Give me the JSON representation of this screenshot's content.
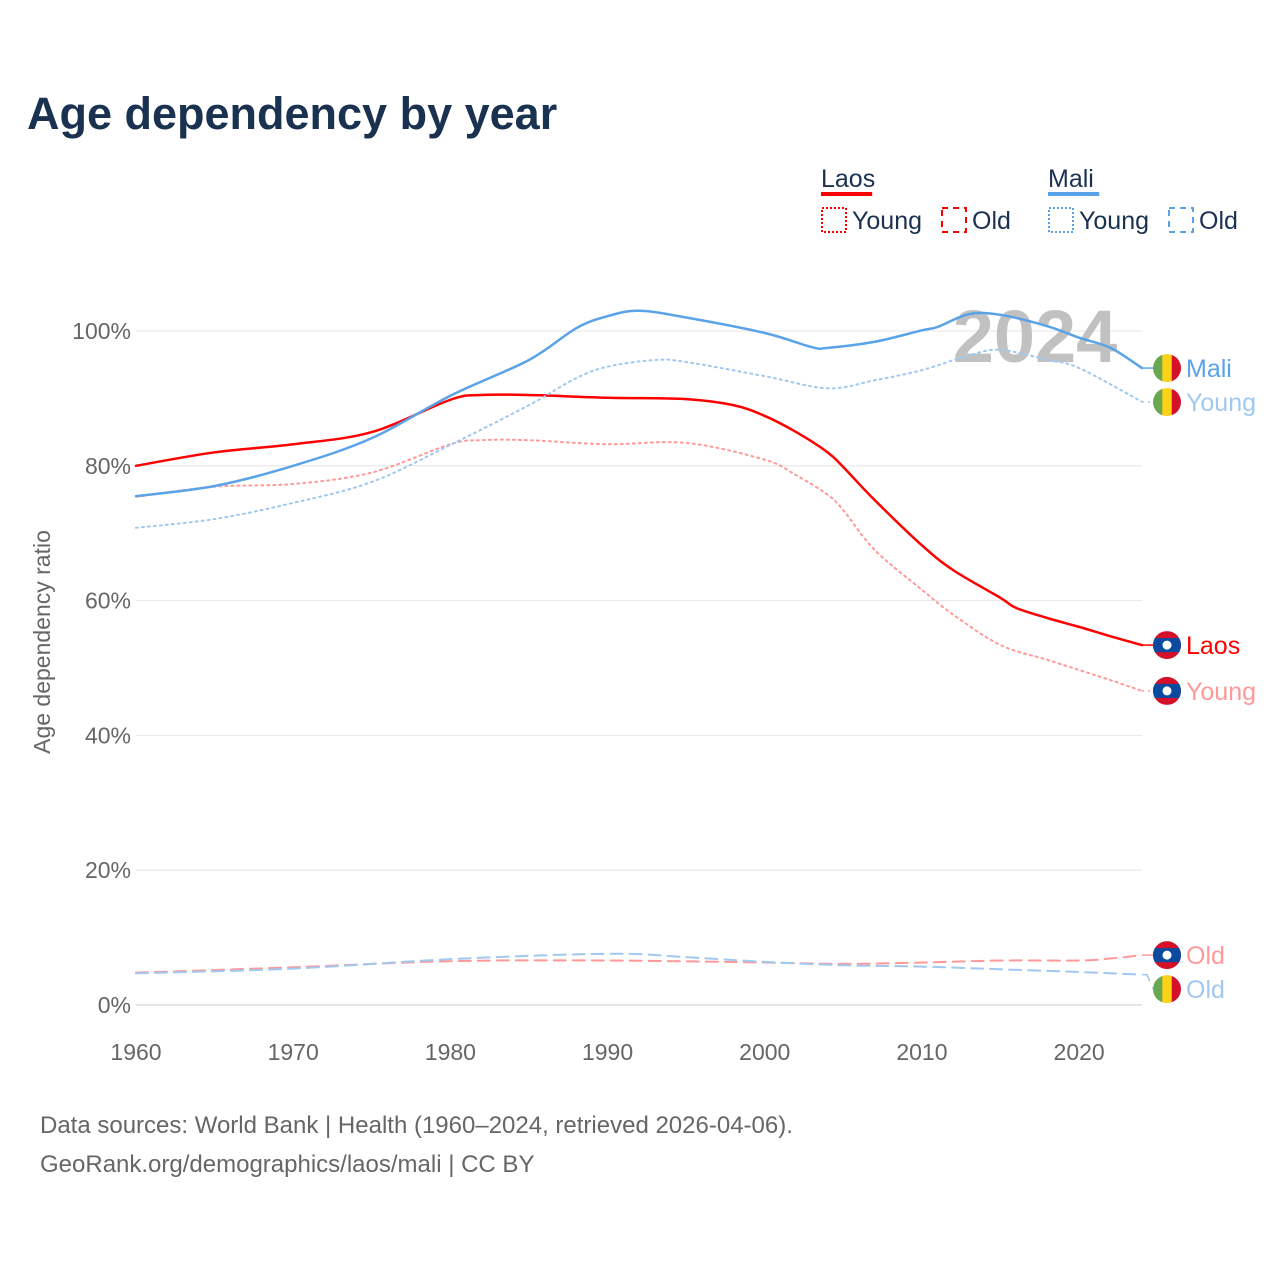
{
  "title": "Age dependency by year",
  "footer": {
    "line1": "Data sources: World Bank | Health (1960–2024, retrieved 2026-04-06).",
    "line2": "GeoRank.org/demographics/laos/mali | CC BY"
  },
  "year_label": "2024",
  "legend": {
    "groups": [
      {
        "name": "Laos",
        "color": "#ff0000",
        "young_label": "Young",
        "old_label": "Old"
      },
      {
        "name": "Mali",
        "color": "#5ba3e8",
        "young_label": "Young",
        "old_label": "Old"
      }
    ]
  },
  "chart_data": {
    "type": "line",
    "title": "Age dependency by year",
    "xlabel": "",
    "ylabel": "Age dependency ratio",
    "xlim": [
      1960,
      2024
    ],
    "ylim": [
      0,
      100
    ],
    "x_ticks": [
      "1960",
      "1970",
      "1980",
      "1990",
      "2000",
      "2010",
      "2020"
    ],
    "y_ticks": [
      "0%",
      "20%",
      "40%",
      "60%",
      "80%",
      "100%"
    ],
    "grid": true,
    "legend_position": "top-right",
    "series": [
      {
        "name": "Laos",
        "end_label": "Laos",
        "country": "laos",
        "style": "solid",
        "color": "#ff0000",
        "points": [
          [
            1960,
            80.0
          ],
          [
            1965,
            82.0
          ],
          [
            1970,
            83.2
          ],
          [
            1975,
            85.0
          ],
          [
            1980,
            89.8
          ],
          [
            1982,
            90.5
          ],
          [
            1985,
            90.5
          ],
          [
            1990,
            90.1
          ],
          [
            1995,
            89.9
          ],
          [
            1998,
            89.0
          ],
          [
            2000,
            87.4
          ],
          [
            2002,
            85.0
          ],
          [
            2004,
            82.0
          ],
          [
            2005,
            79.8
          ],
          [
            2007,
            74.9
          ],
          [
            2010,
            68.2
          ],
          [
            2012,
            64.5
          ],
          [
            2015,
            60.4
          ],
          [
            2016,
            58.9
          ],
          [
            2018,
            57.4
          ],
          [
            2020,
            56.1
          ],
          [
            2022,
            54.7
          ],
          [
            2024,
            53.4
          ]
        ]
      },
      {
        "name": "Laos Young",
        "end_label": "Young",
        "country": "laos",
        "style": "dotted",
        "color": "#ff9999",
        "points": [
          [
            1960,
            75.4
          ],
          [
            1965,
            76.9
          ],
          [
            1970,
            77.3
          ],
          [
            1975,
            79.0
          ],
          [
            1980,
            83.2
          ],
          [
            1982,
            83.8
          ],
          [
            1985,
            83.8
          ],
          [
            1990,
            83.2
          ],
          [
            1995,
            83.4
          ],
          [
            2000,
            80.9
          ],
          [
            2002,
            78.6
          ],
          [
            2004,
            75.7
          ],
          [
            2005,
            73.4
          ],
          [
            2007,
            67.5
          ],
          [
            2010,
            61.6
          ],
          [
            2012,
            57.9
          ],
          [
            2015,
            53.4
          ],
          [
            2018,
            51.2
          ],
          [
            2020,
            49.7
          ],
          [
            2022,
            48.2
          ],
          [
            2024,
            46.6
          ]
        ]
      },
      {
        "name": "Laos Old",
        "end_label": "Old",
        "country": "laos",
        "style": "dashed",
        "color": "#ff9999",
        "points": [
          [
            1960,
            4.8
          ],
          [
            1970,
            5.6
          ],
          [
            1980,
            6.5
          ],
          [
            1990,
            6.6
          ],
          [
            2000,
            6.3
          ],
          [
            2005,
            6.1
          ],
          [
            2010,
            6.3
          ],
          [
            2015,
            6.6
          ],
          [
            2020,
            6.6
          ],
          [
            2022,
            6.9
          ],
          [
            2024,
            7.4
          ]
        ]
      },
      {
        "name": "Mali",
        "end_label": "Mali",
        "country": "mali",
        "style": "solid",
        "color": "#5ba3e8",
        "points": [
          [
            1960,
            75.5
          ],
          [
            1965,
            77.0
          ],
          [
            1970,
            80.0
          ],
          [
            1975,
            84.1
          ],
          [
            1980,
            90.4
          ],
          [
            1985,
            95.7
          ],
          [
            1988,
            100.4
          ],
          [
            1990,
            102.2
          ],
          [
            1992,
            103.0
          ],
          [
            1995,
            102.0
          ],
          [
            2000,
            99.7
          ],
          [
            2003,
            97.6
          ],
          [
            2004,
            97.5
          ],
          [
            2007,
            98.4
          ],
          [
            2010,
            100.1
          ],
          [
            2011,
            100.6
          ],
          [
            2013,
            102.5
          ],
          [
            2015,
            102.4
          ],
          [
            2018,
            100.7
          ],
          [
            2020,
            99.0
          ],
          [
            2022,
            97.5
          ],
          [
            2024,
            94.5
          ]
        ]
      },
      {
        "name": "Mali Young",
        "end_label": "Young",
        "country": "mali",
        "style": "dotted",
        "color": "#a0c8f0",
        "points": [
          [
            1960,
            70.8
          ],
          [
            1965,
            72.1
          ],
          [
            1970,
            74.5
          ],
          [
            1975,
            77.6
          ],
          [
            1980,
            83.1
          ],
          [
            1985,
            89.0
          ],
          [
            1988,
            93.0
          ],
          [
            1990,
            94.7
          ],
          [
            1993,
            95.7
          ],
          [
            1995,
            95.4
          ],
          [
            2000,
            93.3
          ],
          [
            2004,
            91.5
          ],
          [
            2007,
            92.7
          ],
          [
            2010,
            94.2
          ],
          [
            2013,
            96.4
          ],
          [
            2015,
            97.2
          ],
          [
            2018,
            95.7
          ],
          [
            2020,
            94.5
          ],
          [
            2024,
            89.5
          ]
        ]
      },
      {
        "name": "Mali Old",
        "end_label": "Old",
        "country": "mali",
        "style": "dashed",
        "color": "#a0c8f0",
        "points": [
          [
            1960,
            4.7
          ],
          [
            1970,
            5.4
          ],
          [
            1980,
            6.8
          ],
          [
            1990,
            7.6
          ],
          [
            1995,
            7.1
          ],
          [
            2000,
            6.4
          ],
          [
            2005,
            5.9
          ],
          [
            2010,
            5.7
          ],
          [
            2015,
            5.3
          ],
          [
            2020,
            4.9
          ],
          [
            2024,
            4.5
          ]
        ]
      }
    ]
  }
}
